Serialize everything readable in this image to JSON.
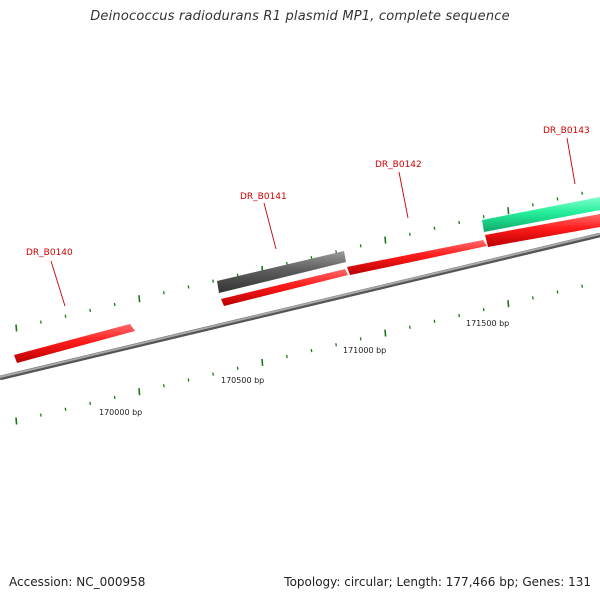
{
  "title": "Deinococcus radiodurans R1 plasmid MP1, complete sequence",
  "genes": [
    {
      "name": "DR_B0140",
      "strand": "+",
      "color": "#ff1111",
      "track": "inner"
    },
    {
      "name": "DR_B0141",
      "strand": "+",
      "color": "#ff1111",
      "track": "inner"
    },
    {
      "name": "DR_B0141",
      "strand": "+",
      "color": "#595959",
      "track": "outer",
      "labeled": true
    },
    {
      "name": "DR_B0142",
      "strand": "+",
      "color": "#ff1111",
      "track": "inner"
    },
    {
      "name": "DR_B0143",
      "strand": "+",
      "color": "#ff1111",
      "track": "inner"
    },
    {
      "name": "DR_B0143",
      "strand": "+",
      "color": "#22ee99",
      "track": "outer",
      "labeled": true
    }
  ],
  "labels": {
    "gene_0": "DR_B0140",
    "gene_1": "DR_B0141",
    "gene_2": "DR_B0142",
    "gene_3": "DR_B0143"
  },
  "scale_labels": {
    "s0": "170000 bp",
    "s1": "170500 bp",
    "s2": "171000 bp",
    "s3": "171500 bp"
  },
  "colors": {
    "backbone": "#8a8a8a",
    "tick": "#1a7a1a",
    "cds": "#ff1111",
    "rrna_gray": "#595959",
    "highlight": "#22ee99"
  },
  "footer": {
    "accession": "Accession: NC_000958",
    "summary": "Topology: circular; Length: 177,466 bp; Genes: 131"
  }
}
